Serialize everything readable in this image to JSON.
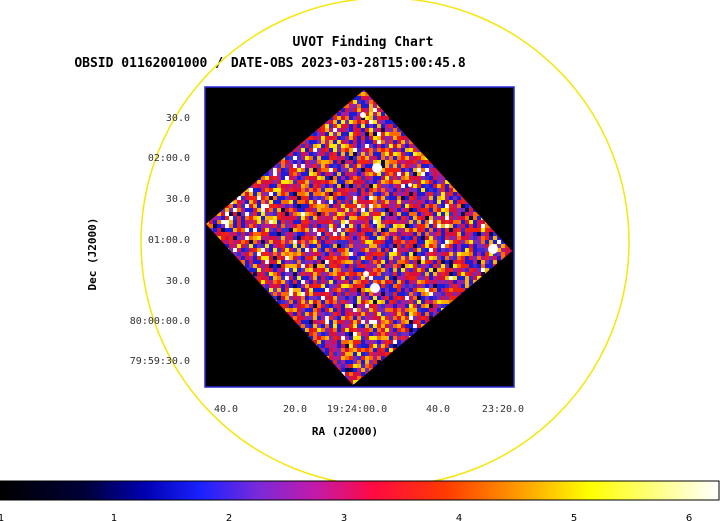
{
  "title": "UVOT Finding Chart",
  "subtitle": "OBSID 01162001000 / DATE-OBS 2023-03-28T15:00:45.8",
  "colors": {
    "circle": "#f5e60c",
    "frame": "#2a2ad8",
    "background": "#000000"
  },
  "chart_data": {
    "type": "heatmap",
    "title": "UVOT Finding Chart",
    "subtitle": "OBSID 01162001000 / DATE-OBS 2023-03-28T15:00:45.8",
    "xlabel": "RA (J2000)",
    "ylabel": "Dec (J2000)",
    "x_ticks": [
      "40.0",
      "20.0",
      "19:24:00.0",
      "40.0",
      "23:20.0"
    ],
    "y_ticks": [
      "30.0",
      "02:00.0",
      "30.0",
      "01:00.0",
      "30.0",
      "80:00:00.0",
      "79:59:30.0"
    ],
    "colorbar": {
      "ticks": [
        "1",
        "1",
        "2",
        "3",
        "4",
        "5",
        "6"
      ],
      "range": [
        0,
        6.1
      ]
    },
    "colormap": "heat (black-blue-magenta-red-orange-yellow-white)",
    "grid": false
  }
}
